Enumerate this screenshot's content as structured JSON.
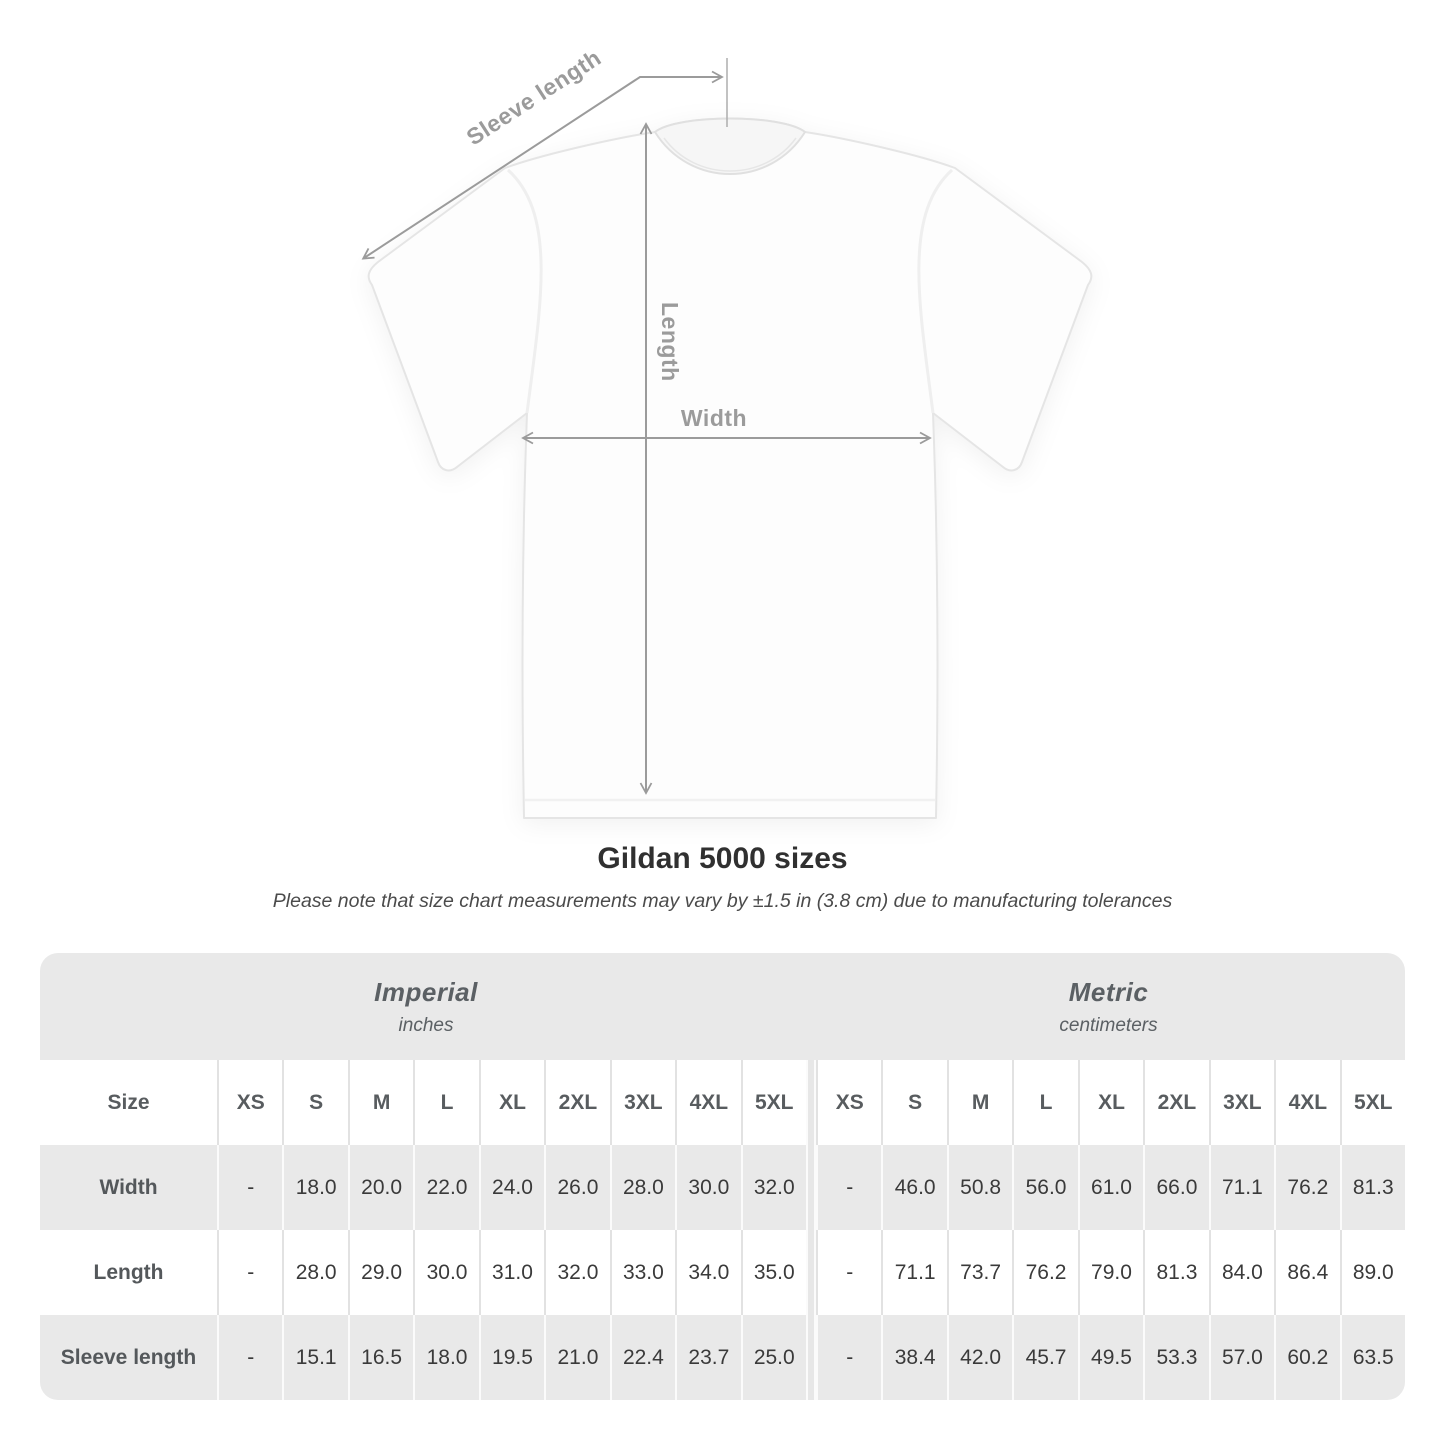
{
  "diagram": {
    "sleeve_length_label": "Sleeve length",
    "length_label": "Length",
    "width_label": "Width"
  },
  "heading": {
    "title": "Gildan 5000 sizes",
    "note": "Please note that size chart measurements may vary by ±1.5 in (3.8 cm) due to manufacturing tolerances"
  },
  "chart_data": {
    "type": "table",
    "title": "Gildan 5000 sizes",
    "column_groups": [
      {
        "label": "Imperial",
        "unit": "inches"
      },
      {
        "label": "Metric",
        "unit": "centimeters"
      }
    ],
    "size_header": "Size",
    "sizes": [
      "XS",
      "S",
      "M",
      "L",
      "XL",
      "2XL",
      "3XL",
      "4XL",
      "5XL"
    ],
    "rows": [
      {
        "label": "Width",
        "imperial": [
          "-",
          "18.0",
          "20.0",
          "22.0",
          "24.0",
          "26.0",
          "28.0",
          "30.0",
          "32.0"
        ],
        "metric": [
          "-",
          "46.0",
          "50.8",
          "56.0",
          "61.0",
          "66.0",
          "71.1",
          "76.2",
          "81.3"
        ]
      },
      {
        "label": "Length",
        "imperial": [
          "-",
          "28.0",
          "29.0",
          "30.0",
          "31.0",
          "32.0",
          "33.0",
          "34.0",
          "35.0"
        ],
        "metric": [
          "-",
          "71.1",
          "73.7",
          "76.2",
          "79.0",
          "81.3",
          "84.0",
          "86.4",
          "89.0"
        ]
      },
      {
        "label": "Sleeve length",
        "imperial": [
          "-",
          "15.1",
          "16.5",
          "18.0",
          "19.5",
          "21.0",
          "22.4",
          "23.7",
          "25.0"
        ],
        "metric": [
          "-",
          "38.4",
          "42.0",
          "45.7",
          "49.5",
          "53.3",
          "57.0",
          "60.2",
          "63.5"
        ]
      }
    ]
  },
  "colors": {
    "band_gray": "#e9e9e9",
    "row_gray": "#e9e9e9",
    "arrow_gray": "#9b9b9b",
    "title_text": "#303030"
  }
}
